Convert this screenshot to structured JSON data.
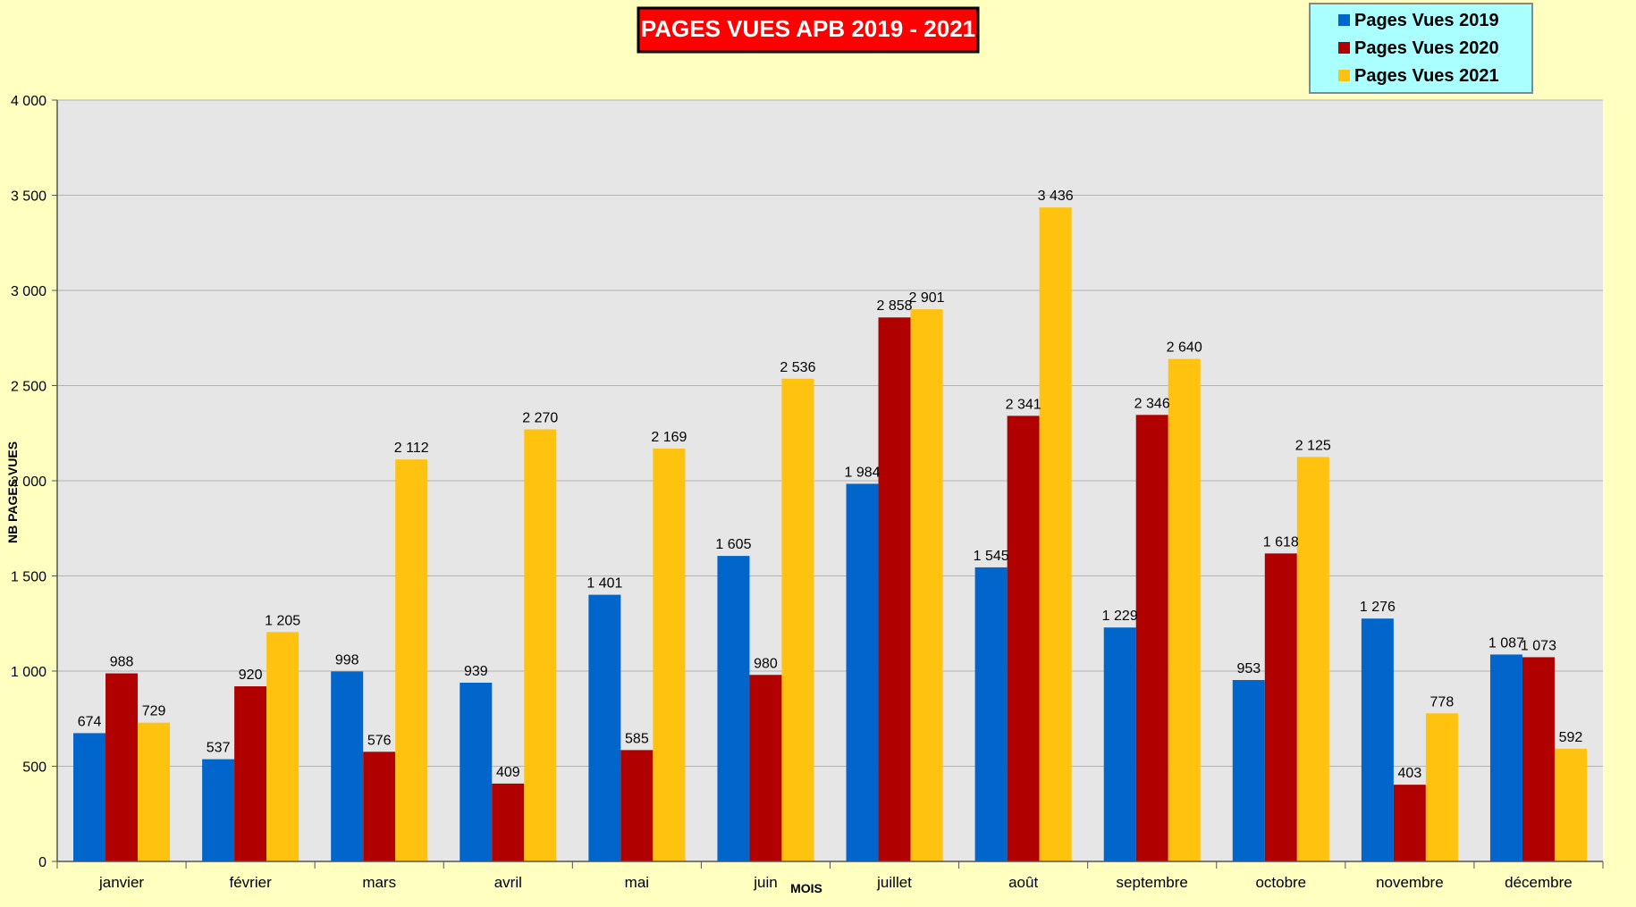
{
  "chart_data": {
    "type": "bar",
    "title": "PAGES VUES APB 2019 - 2021",
    "xlabel": "MOIS",
    "ylabel": "NB PAGES VUES",
    "categories": [
      "janvier",
      "février",
      "mars",
      "avril",
      "mai",
      "juin",
      "juillet",
      "août",
      "septembre",
      "octobre",
      "novembre",
      "décembre"
    ],
    "series": [
      {
        "name": "Pages Vues 2019",
        "color": "#0066cc",
        "values": [
          674,
          537,
          998,
          939,
          1401,
          1605,
          1984,
          1545,
          1229,
          953,
          1276,
          1087
        ]
      },
      {
        "name": "Pages Vues 2020",
        "color": "#b00000",
        "values": [
          988,
          920,
          576,
          409,
          585,
          980,
          2858,
          2341,
          2346,
          1618,
          403,
          1073
        ]
      },
      {
        "name": "Pages Vues 2021",
        "color": "#ffc20e",
        "values": [
          729,
          1205,
          2112,
          2270,
          2169,
          2536,
          2901,
          3436,
          2640,
          2125,
          778,
          592
        ]
      }
    ],
    "ylim": [
      0,
      4000
    ],
    "yticks": [
      0,
      500,
      1000,
      1500,
      2000,
      2500,
      3000,
      3500,
      4000
    ],
    "ytick_labels": [
      "0",
      "500",
      "1 000",
      "1 500",
      "2 000",
      "2 500",
      "3 000",
      "3 500",
      "4 000"
    ],
    "data_labels": [
      [
        "674",
        "537",
        "998",
        "939",
        "1 401",
        "1 605",
        "1 984",
        "1 545",
        "1 229",
        "953",
        "1 276",
        "1 087"
      ],
      [
        "988",
        "920",
        "576",
        "409",
        "585",
        "980",
        "2 858",
        "2 341",
        "2 346",
        "1 618",
        "403",
        "1 073"
      ],
      [
        "729",
        "1 205",
        "2 112",
        "2 270",
        "2 169",
        "2 536",
        "2 901",
        "3 436",
        "2 640",
        "2 125",
        "778",
        "592"
      ]
    ],
    "grid": true,
    "legend_position": "top-right",
    "colors": {
      "page_background": "#ffffc0",
      "plot_background": "#e6e6e6",
      "gridline": "#b3b3b3",
      "title_background": "#ff0000",
      "title_text": "#ffffff",
      "legend_background": "#aaffff"
    }
  }
}
